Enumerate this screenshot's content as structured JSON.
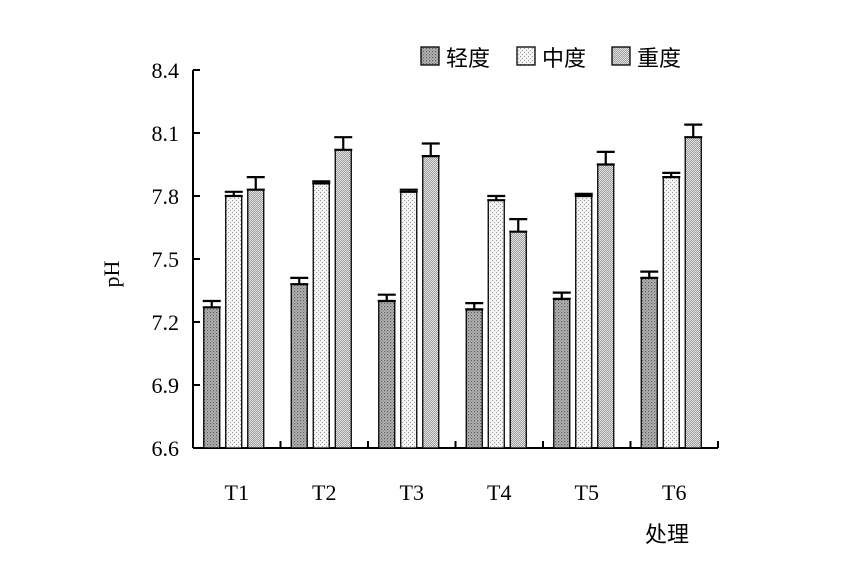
{
  "chart_data": {
    "type": "bar",
    "title": "",
    "xlabel": "处理",
    "ylabel": "pH",
    "categories": [
      "T1",
      "T2",
      "T3",
      "T4",
      "T5",
      "T6"
    ],
    "ylim": [
      6.6,
      8.4
    ],
    "yticks": [
      "6.6",
      "6.9",
      "7.2",
      "7.5",
      "7.8",
      "8.1",
      "8.4"
    ],
    "series": [
      {
        "name": "轻度",
        "values": [
          7.27,
          7.38,
          7.3,
          7.26,
          7.31,
          7.41
        ],
        "errors": [
          0.03,
          0.03,
          0.03,
          0.03,
          0.03,
          0.03
        ],
        "pattern": "dots-dark"
      },
      {
        "name": "中度",
        "values": [
          7.8,
          7.86,
          7.82,
          7.78,
          7.8,
          7.89
        ],
        "errors": [
          0.02,
          0.01,
          0.01,
          0.02,
          0.01,
          0.02
        ],
        "pattern": "dots-light"
      },
      {
        "name": "重度",
        "values": [
          7.83,
          8.02,
          7.99,
          7.63,
          7.95,
          8.08
        ],
        "errors": [
          0.06,
          0.06,
          0.06,
          0.06,
          0.06,
          0.06
        ],
        "pattern": "checker"
      }
    ],
    "legend_position": "top-right",
    "grid": false,
    "error_bars": true
  }
}
